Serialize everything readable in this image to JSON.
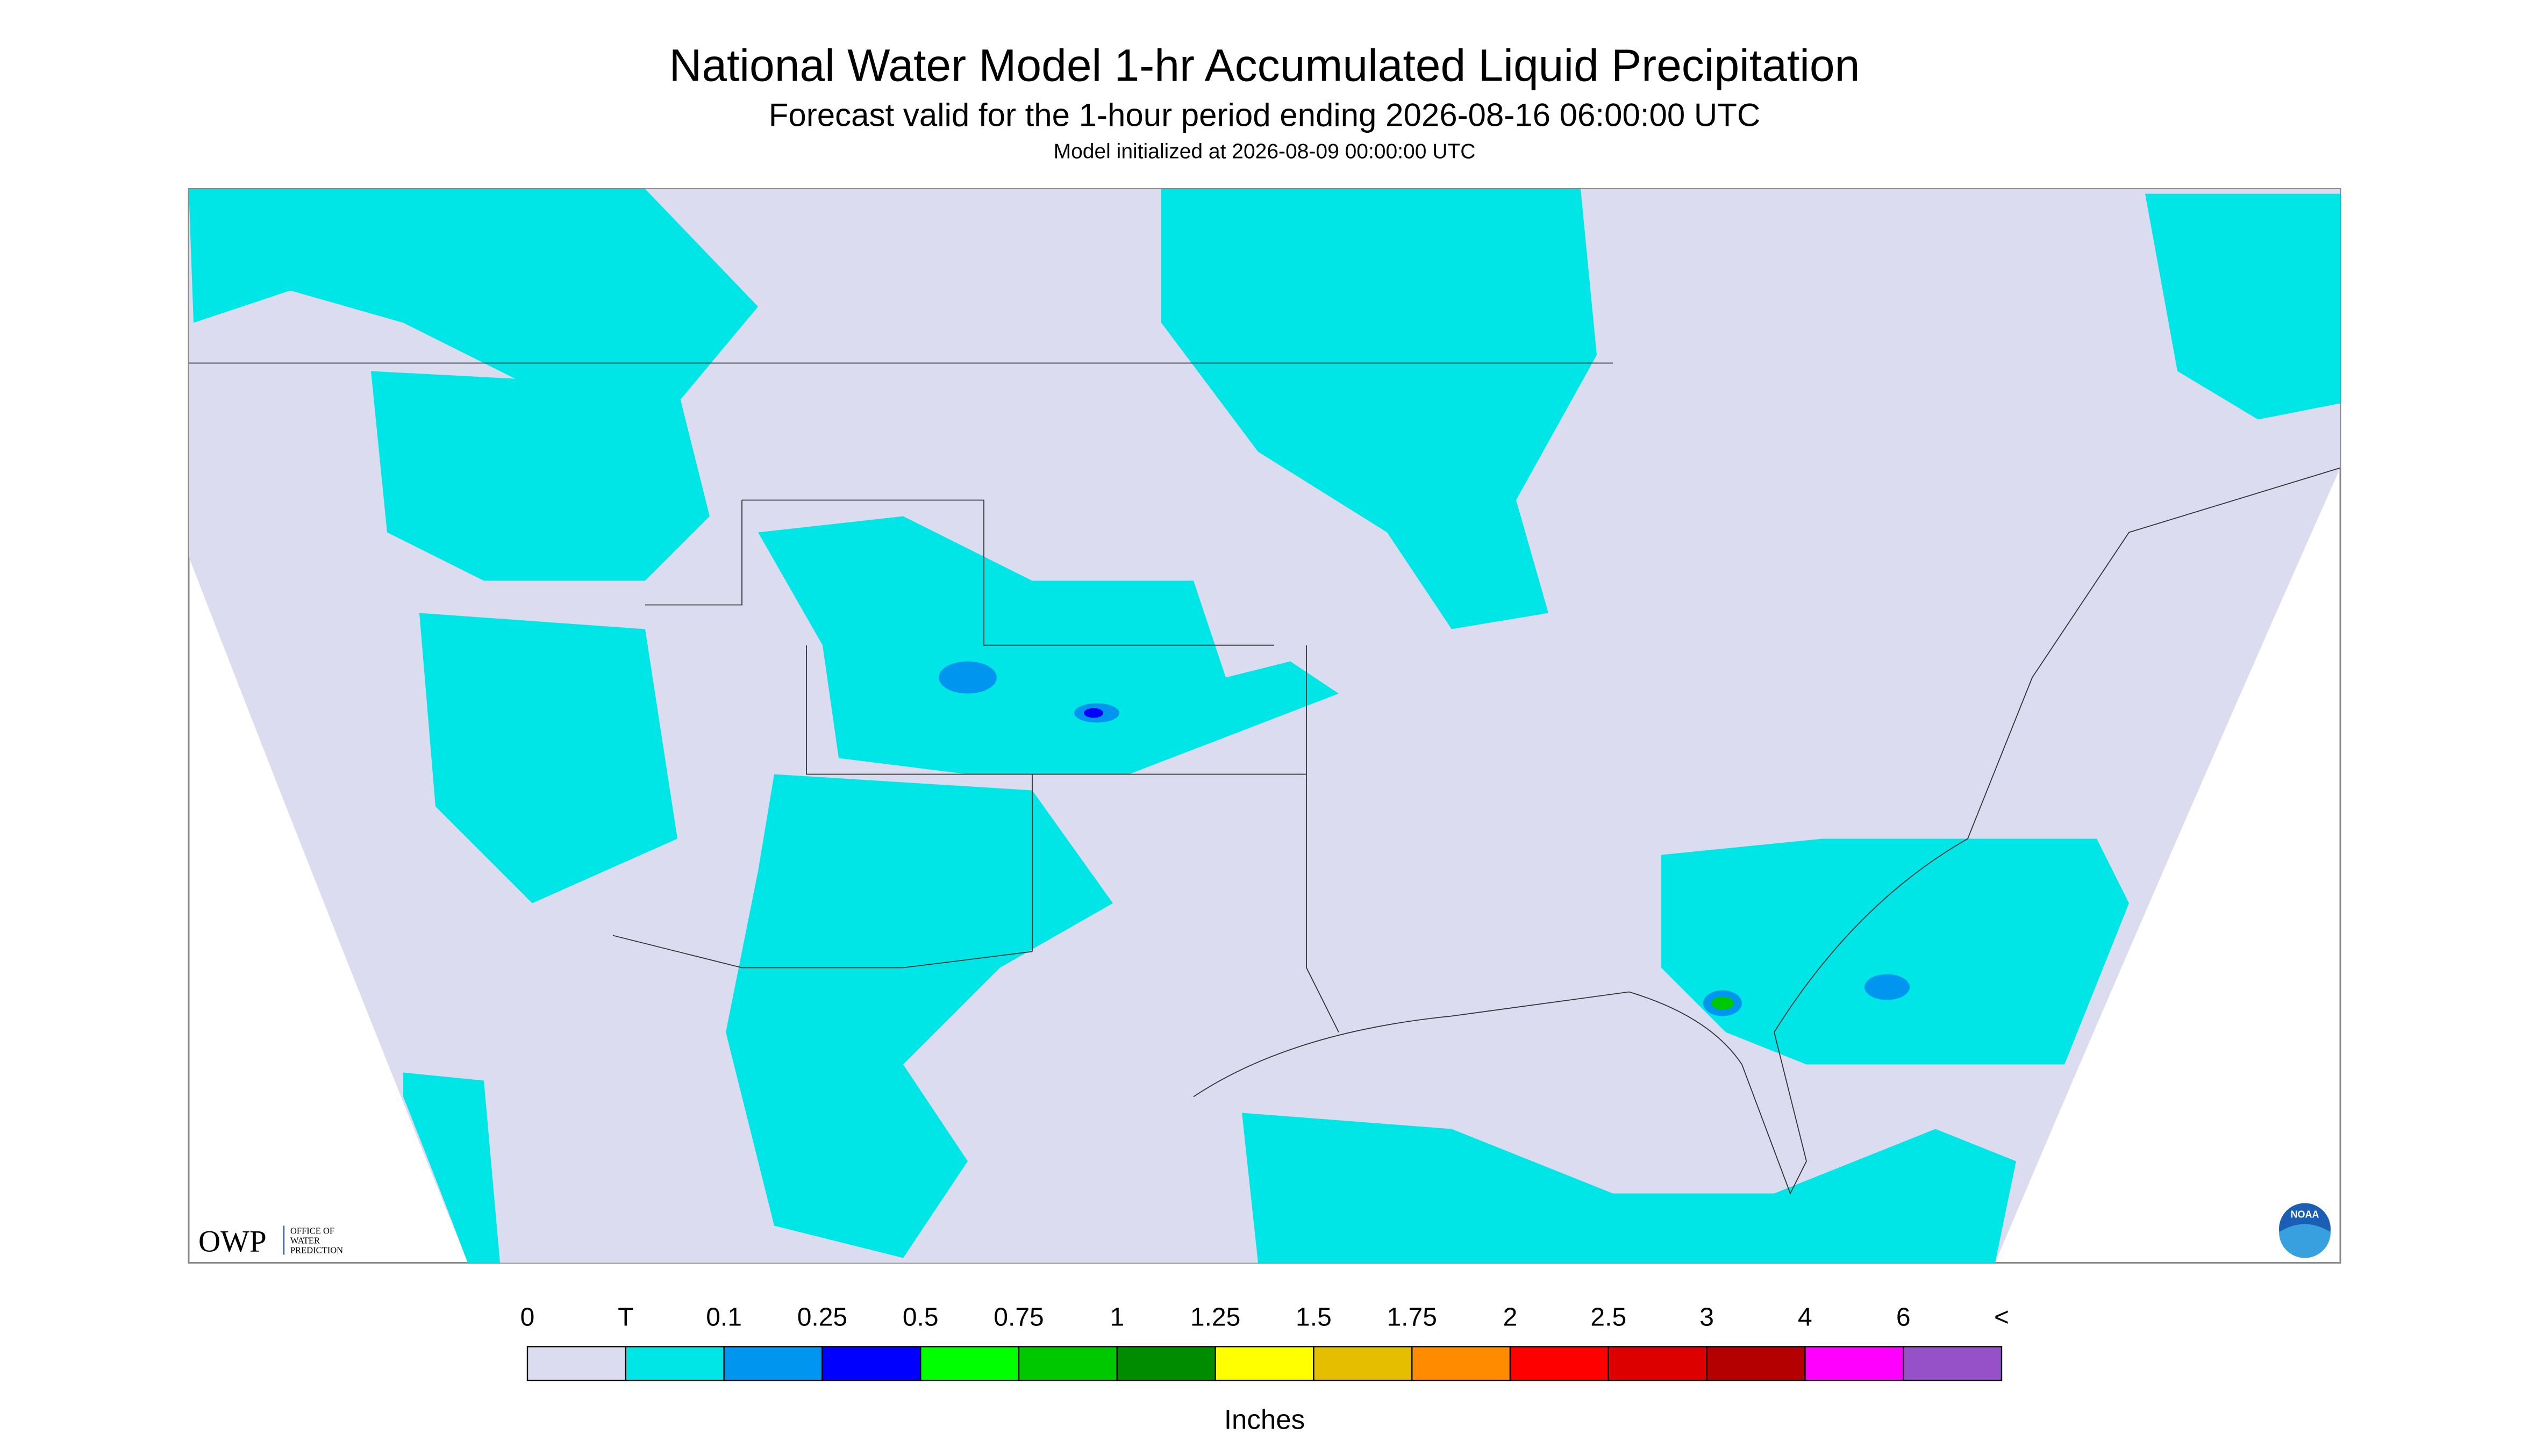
{
  "header": {
    "title": "National Water Model 1-hr Accumulated Liquid Precipitation",
    "subtitle": "Forecast valid for the 1-hour period ending 2026-08-16 06:00:00 UTC",
    "init": "Model initialized at 2026-08-09 00:00:00 UTC"
  },
  "logos": {
    "owp": "OWP",
    "owp_full": [
      "OFFICE OF",
      "WATER",
      "PREDICTION"
    ],
    "noaa": "NOAA"
  },
  "legend": {
    "labels": [
      "0",
      "T",
      "0.1",
      "0.25",
      "0.5",
      "0.75",
      "1",
      "1.25",
      "1.5",
      "1.75",
      "2",
      "2.5",
      "3",
      "4",
      "6",
      "<"
    ],
    "colors": [
      "#dcdcf0",
      "#00e6e6",
      "#0096f0",
      "#0000ff",
      "#00ff00",
      "#00c800",
      "#008c00",
      "#ffff00",
      "#e6be00",
      "#ff8c00",
      "#ff0000",
      "#dc0000",
      "#b40000",
      "#ff00ff",
      "#9650c8"
    ],
    "unit": "Inches"
  }
}
